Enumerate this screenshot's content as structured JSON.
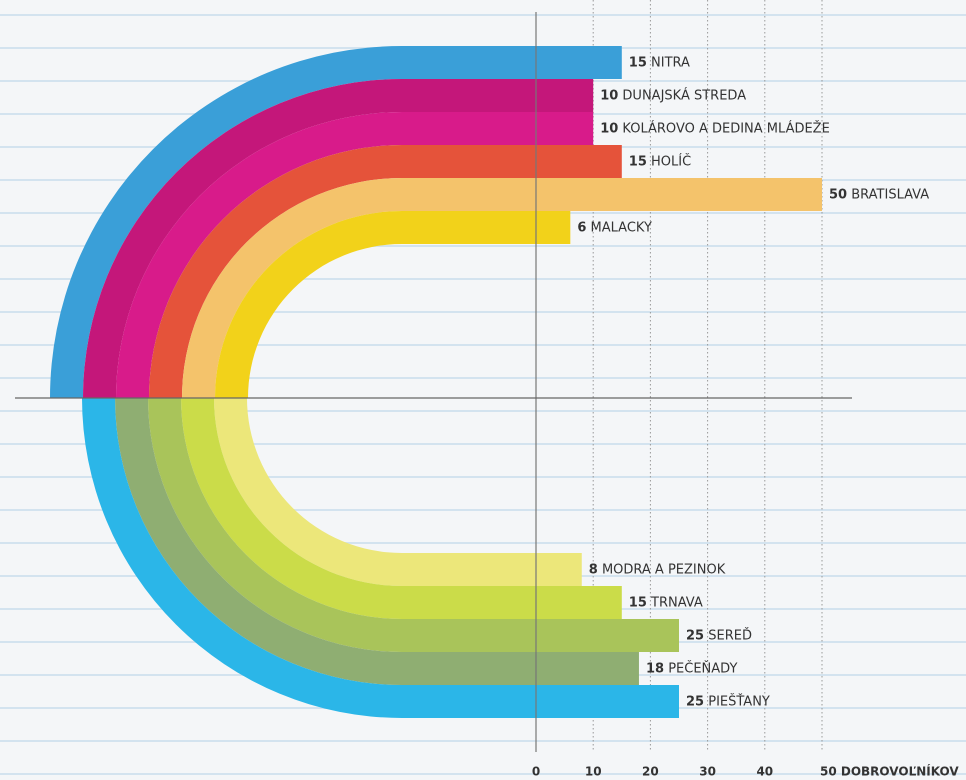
{
  "chart_data": {
    "type": "arc-bar",
    "xlim": [
      0,
      50
    ],
    "xticks": [
      0,
      10,
      20,
      30,
      40,
      {
        "value": 50,
        "label": "50 DOBROVOĽNÍKOV"
      }
    ],
    "series": [
      {
        "categories": [
          "NITRA",
          "DUNAJSKÁ STREDA",
          "KOLÁROVO A DEDINA MLÁDEŽE",
          "HOLÍČ",
          "BRATISLAVA",
          "MALACKY"
        ],
        "values": [
          15,
          10,
          10,
          15,
          50,
          6
        ],
        "colors": [
          "#3a9fd8",
          "#c4177a",
          "#d81b8a",
          "#e5533a",
          "#f4c36b",
          "#f2d21a"
        ]
      },
      {
        "categories": [
          "MODRA A PEZINOK",
          "TRNAVA",
          "SEREĎ",
          "PEČEŇADY",
          "PIEŠŤANY"
        ],
        "values": [
          8,
          15,
          25,
          18,
          25
        ],
        "colors": [
          "#ece77a",
          "#cbdc49",
          "#a9c45a",
          "#8fae72",
          "#2bb6e8"
        ]
      }
    ]
  }
}
